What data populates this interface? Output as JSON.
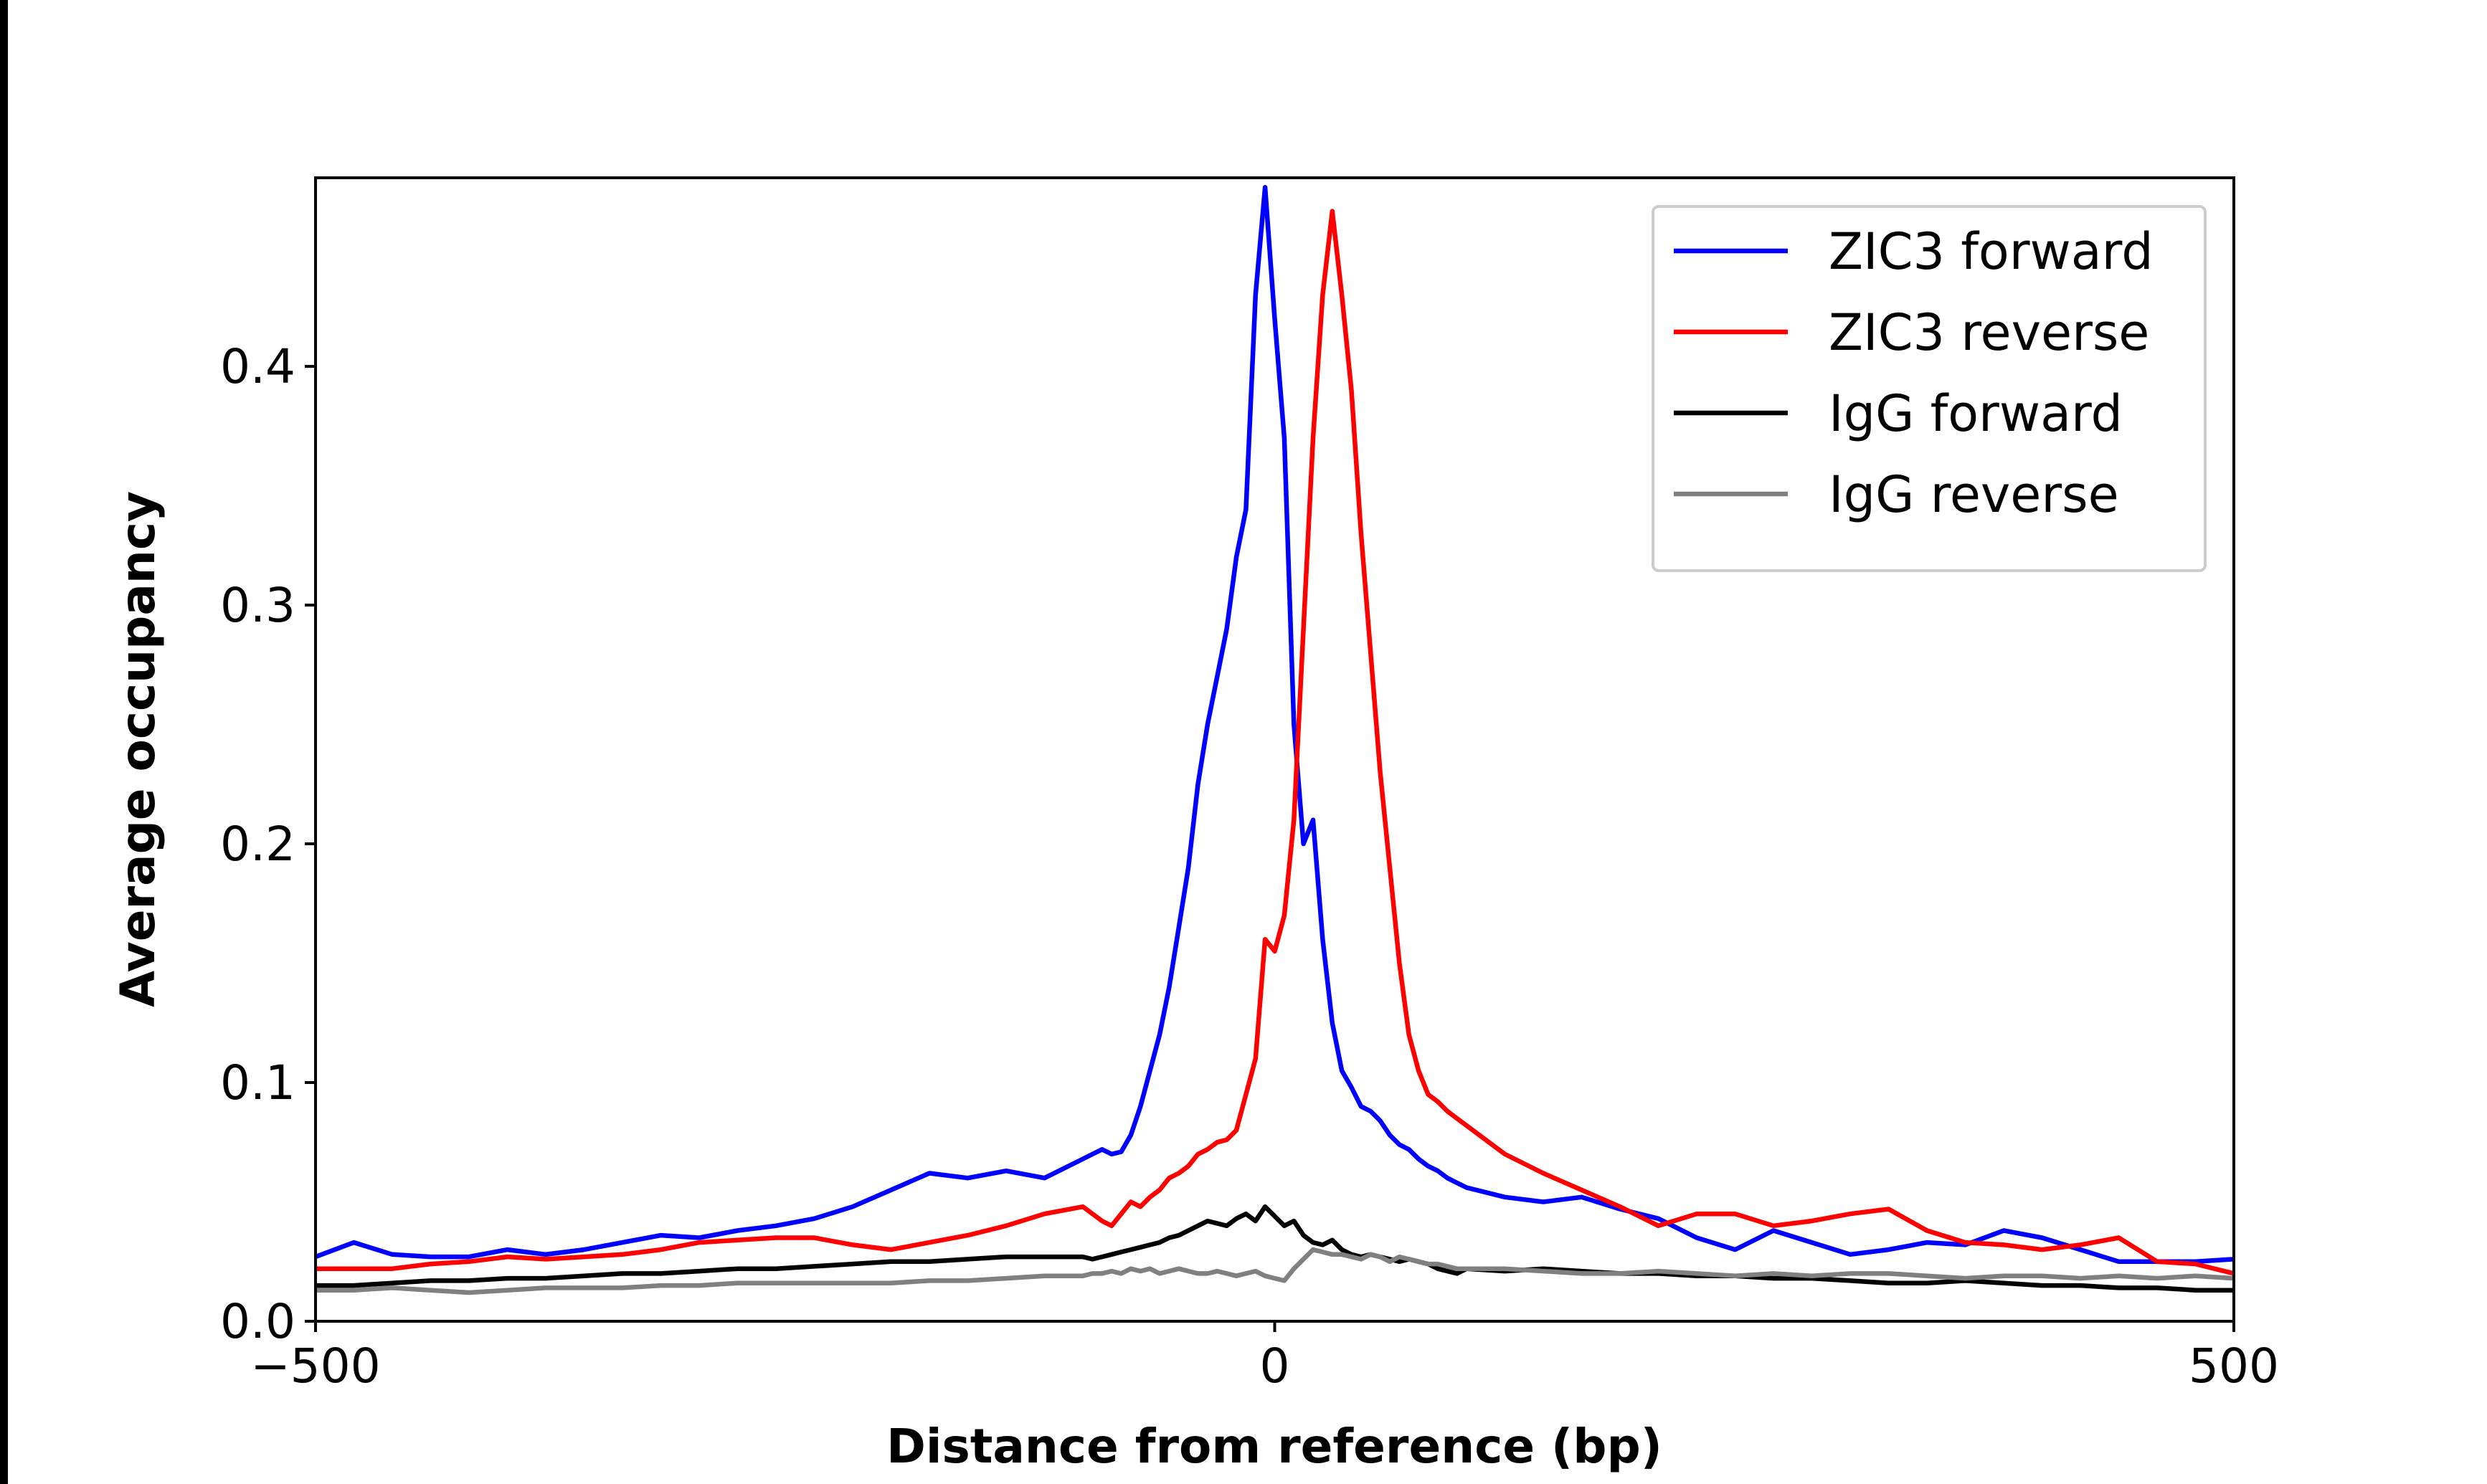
{
  "chart_data": {
    "type": "line",
    "xlabel": "Distance from reference (bp)",
    "ylabel": "Average occupancy",
    "xlim": [
      -500,
      500
    ],
    "ylim": [
      0,
      0.479
    ],
    "xticks": [
      {
        "value": -500,
        "label": "−500"
      },
      0,
      500
    ],
    "yticks": [
      {
        "value": 0,
        "label": "0.0"
      },
      0.1,
      0.2,
      0.3,
      0.4
    ],
    "legend": "upper right",
    "x": [
      -500,
      -480,
      -460,
      -440,
      -420,
      -400,
      -380,
      -360,
      -340,
      -320,
      -300,
      -280,
      -260,
      -240,
      -220,
      -200,
      -180,
      -160,
      -140,
      -120,
      -100,
      -95,
      -90,
      -85,
      -80,
      -75,
      -70,
      -65,
      -60,
      -55,
      -50,
      -45,
      -40,
      -35,
      -30,
      -25,
      -20,
      -15,
      -10,
      -5,
      0,
      5,
      10,
      15,
      20,
      25,
      30,
      35,
      40,
      45,
      50,
      55,
      60,
      65,
      70,
      75,
      80,
      85,
      90,
      95,
      100,
      120,
      140,
      160,
      180,
      200,
      220,
      240,
      260,
      280,
      300,
      320,
      340,
      360,
      380,
      400,
      420,
      440,
      460,
      480,
      500
    ],
    "series": [
      {
        "name": "ZIC3 forward",
        "color": "#0000ff",
        "values": [
          0.027,
          0.033,
          0.028,
          0.027,
          0.027,
          0.03,
          0.028,
          0.03,
          0.033,
          0.036,
          0.035,
          0.038,
          0.04,
          0.043,
          0.048,
          0.055,
          0.062,
          0.06,
          0.063,
          0.06,
          0.068,
          0.07,
          0.072,
          0.07,
          0.071,
          0.078,
          0.09,
          0.105,
          0.12,
          0.14,
          0.165,
          0.19,
          0.225,
          0.25,
          0.27,
          0.29,
          0.32,
          0.34,
          0.43,
          0.475,
          0.42,
          0.37,
          0.25,
          0.2,
          0.21,
          0.16,
          0.125,
          0.105,
          0.098,
          0.09,
          0.088,
          0.084,
          0.078,
          0.074,
          0.072,
          0.068,
          0.065,
          0.063,
          0.06,
          0.058,
          0.056,
          0.052,
          0.05,
          0.052,
          0.047,
          0.043,
          0.035,
          0.03,
          0.038,
          0.033,
          0.028,
          0.03,
          0.033,
          0.032,
          0.038,
          0.035,
          0.03,
          0.025,
          0.025,
          0.025,
          0.026
        ]
      },
      {
        "name": "ZIC3 reverse",
        "color": "#ff0000",
        "values": [
          0.022,
          0.022,
          0.022,
          0.024,
          0.025,
          0.027,
          0.026,
          0.027,
          0.028,
          0.03,
          0.033,
          0.034,
          0.035,
          0.035,
          0.032,
          0.03,
          0.033,
          0.036,
          0.04,
          0.045,
          0.048,
          0.045,
          0.042,
          0.04,
          0.045,
          0.05,
          0.048,
          0.052,
          0.055,
          0.06,
          0.062,
          0.065,
          0.07,
          0.072,
          0.075,
          0.076,
          0.08,
          0.095,
          0.11,
          0.16,
          0.155,
          0.17,
          0.21,
          0.29,
          0.37,
          0.43,
          0.465,
          0.43,
          0.39,
          0.33,
          0.28,
          0.23,
          0.19,
          0.15,
          0.12,
          0.105,
          0.095,
          0.092,
          0.088,
          0.085,
          0.082,
          0.07,
          0.062,
          0.055,
          0.048,
          0.04,
          0.045,
          0.045,
          0.04,
          0.042,
          0.045,
          0.047,
          0.038,
          0.033,
          0.032,
          0.03,
          0.032,
          0.035,
          0.025,
          0.024,
          0.02
        ]
      },
      {
        "name": "IgG forward",
        "color": "#000000",
        "values": [
          0.015,
          0.015,
          0.016,
          0.017,
          0.017,
          0.018,
          0.018,
          0.019,
          0.02,
          0.02,
          0.021,
          0.022,
          0.022,
          0.023,
          0.024,
          0.025,
          0.025,
          0.026,
          0.027,
          0.027,
          0.027,
          0.026,
          0.027,
          0.028,
          0.029,
          0.03,
          0.031,
          0.032,
          0.033,
          0.035,
          0.036,
          0.038,
          0.04,
          0.042,
          0.041,
          0.04,
          0.043,
          0.045,
          0.042,
          0.048,
          0.044,
          0.04,
          0.042,
          0.036,
          0.033,
          0.032,
          0.034,
          0.03,
          0.028,
          0.027,
          0.028,
          0.027,
          0.026,
          0.025,
          0.026,
          0.025,
          0.024,
          0.022,
          0.021,
          0.02,
          0.022,
          0.021,
          0.022,
          0.021,
          0.02,
          0.02,
          0.019,
          0.019,
          0.018,
          0.018,
          0.017,
          0.016,
          0.016,
          0.017,
          0.016,
          0.015,
          0.015,
          0.014,
          0.014,
          0.013,
          0.013
        ]
      },
      {
        "name": "IgG reverse",
        "color": "#808080",
        "values": [
          0.013,
          0.013,
          0.014,
          0.013,
          0.012,
          0.013,
          0.014,
          0.014,
          0.014,
          0.015,
          0.015,
          0.016,
          0.016,
          0.016,
          0.016,
          0.016,
          0.017,
          0.017,
          0.018,
          0.019,
          0.019,
          0.02,
          0.02,
          0.021,
          0.02,
          0.022,
          0.021,
          0.022,
          0.02,
          0.021,
          0.022,
          0.021,
          0.02,
          0.02,
          0.021,
          0.02,
          0.019,
          0.02,
          0.021,
          0.019,
          0.018,
          0.017,
          0.022,
          0.026,
          0.03,
          0.029,
          0.028,
          0.028,
          0.027,
          0.026,
          0.028,
          0.027,
          0.025,
          0.027,
          0.026,
          0.025,
          0.024,
          0.024,
          0.023,
          0.022,
          0.022,
          0.022,
          0.021,
          0.02,
          0.02,
          0.021,
          0.02,
          0.019,
          0.02,
          0.019,
          0.02,
          0.02,
          0.019,
          0.018,
          0.019,
          0.019,
          0.018,
          0.019,
          0.018,
          0.019,
          0.018
        ]
      }
    ]
  }
}
